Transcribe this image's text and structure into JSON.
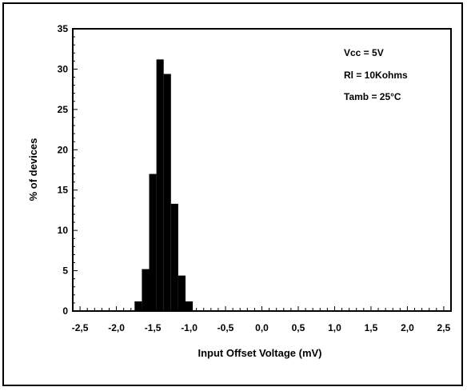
{
  "chart_data": {
    "type": "bar",
    "title": "",
    "xlabel": "Input Offset Voltage (mV)",
    "ylabel": "% of devices",
    "xlim": [
      -2.6,
      2.6
    ],
    "ylim": [
      0,
      35
    ],
    "xticks": [
      "-2,5",
      "-2,0",
      "-1,5",
      "-1,0",
      "-0,5",
      "0,0",
      "0,5",
      "1,0",
      "1,5",
      "2,0",
      "2,5"
    ],
    "xtick_values": [
      -2.5,
      -2.0,
      -1.5,
      -1.0,
      -0.5,
      0.0,
      0.5,
      1.0,
      1.5,
      2.0,
      2.5
    ],
    "yticks": [
      "0",
      "5",
      "10",
      "15",
      "20",
      "25",
      "30",
      "35"
    ],
    "ytick_values": [
      0,
      5,
      10,
      15,
      20,
      25,
      30,
      35
    ],
    "bin_width": 0.1,
    "bins": [
      {
        "x": -1.7,
        "value": 1.2
      },
      {
        "x": -1.6,
        "value": 5.2
      },
      {
        "x": -1.5,
        "value": 17.0
      },
      {
        "x": -1.4,
        "value": 31.2
      },
      {
        "x": -1.3,
        "value": 29.4
      },
      {
        "x": -1.2,
        "value": 13.3
      },
      {
        "x": -1.1,
        "value": 4.4
      },
      {
        "x": -1.0,
        "value": 1.2
      }
    ],
    "grid": false,
    "annotations": [
      "Vcc = 5V",
      "Rl = 10Kohms",
      "Tamb = 25°C"
    ],
    "bar_color": "#000000"
  }
}
